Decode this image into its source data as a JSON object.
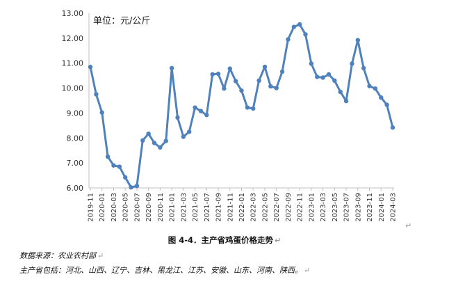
{
  "chart_data": {
    "type": "line",
    "unit_label": "单位：元/公斤",
    "x": [
      "2019-11",
      "2019-12",
      "2020-01",
      "2020-02",
      "2020-03",
      "2020-04",
      "2020-05",
      "2020-06",
      "2020-07",
      "2020-08",
      "2020-09",
      "2020-10",
      "2020-11",
      "2020-12",
      "2021-01",
      "2021-02",
      "2021-03",
      "2021-04",
      "2021-05",
      "2021-06",
      "2021-07",
      "2021-08",
      "2021-09",
      "2021-10",
      "2021-11",
      "2021-12",
      "2022-01",
      "2022-02",
      "2022-03",
      "2022-04",
      "2022-05",
      "2022-06",
      "2022-07",
      "2022-08",
      "2022-09",
      "2022-10",
      "2022-11",
      "2022-12",
      "2023-01",
      "2023-02",
      "2023-03",
      "2023-04",
      "2023-05",
      "2023-06",
      "2023-07",
      "2023-08",
      "2023-09",
      "2023-10",
      "2023-11",
      "2023-12",
      "2024-01",
      "2024-02",
      "2024-03"
    ],
    "x_tick_labels": [
      "2019-11",
      "2020-01",
      "2020-03",
      "2020-05",
      "2020-07",
      "2020-09",
      "2020-11",
      "2021-01",
      "2021-03",
      "2021-05",
      "2021-07",
      "2021-09",
      "2021-11",
      "2022-01",
      "2022-03",
      "2022-05",
      "2022-07",
      "2022-09",
      "2022-11",
      "2023-01",
      "2023-03",
      "2023-05",
      "2023-07",
      "2023-09",
      "2023-11",
      "2024-01",
      "2024-03"
    ],
    "series": [
      {
        "values": [
          10.85,
          9.75,
          9.02,
          7.25,
          6.9,
          6.85,
          6.42,
          6.02,
          6.08,
          7.9,
          8.17,
          7.8,
          7.62,
          7.88,
          10.8,
          8.82,
          8.05,
          8.25,
          9.22,
          9.08,
          8.92,
          10.55,
          10.57,
          9.98,
          10.78,
          10.28,
          9.9,
          9.22,
          9.18,
          10.3,
          10.85,
          10.07,
          10.0,
          10.66,
          11.95,
          12.45,
          12.55,
          12.15,
          10.98,
          10.45,
          10.42,
          10.55,
          10.3,
          9.85,
          9.48,
          10.98,
          11.92,
          10.8,
          10.08,
          9.98,
          9.62,
          9.33,
          8.42
        ]
      }
    ],
    "ylim": [
      6.0,
      13.0
    ],
    "y_ticks": [
      "6.00",
      "7.00",
      "8.00",
      "9.00",
      "10.00",
      "11.00",
      "12.00",
      "13.00"
    ],
    "grid": false,
    "line_color": "#4f81bd"
  },
  "caption": "图 4-4．主产省鸡蛋价格走势",
  "notes": {
    "source": "数据来源：农业农村部",
    "provinces": "主产省包括：河北、山西、辽宁、吉林、黑龙江、江苏、安徽、山东、河南、陕西。"
  },
  "return_mark": "↵"
}
